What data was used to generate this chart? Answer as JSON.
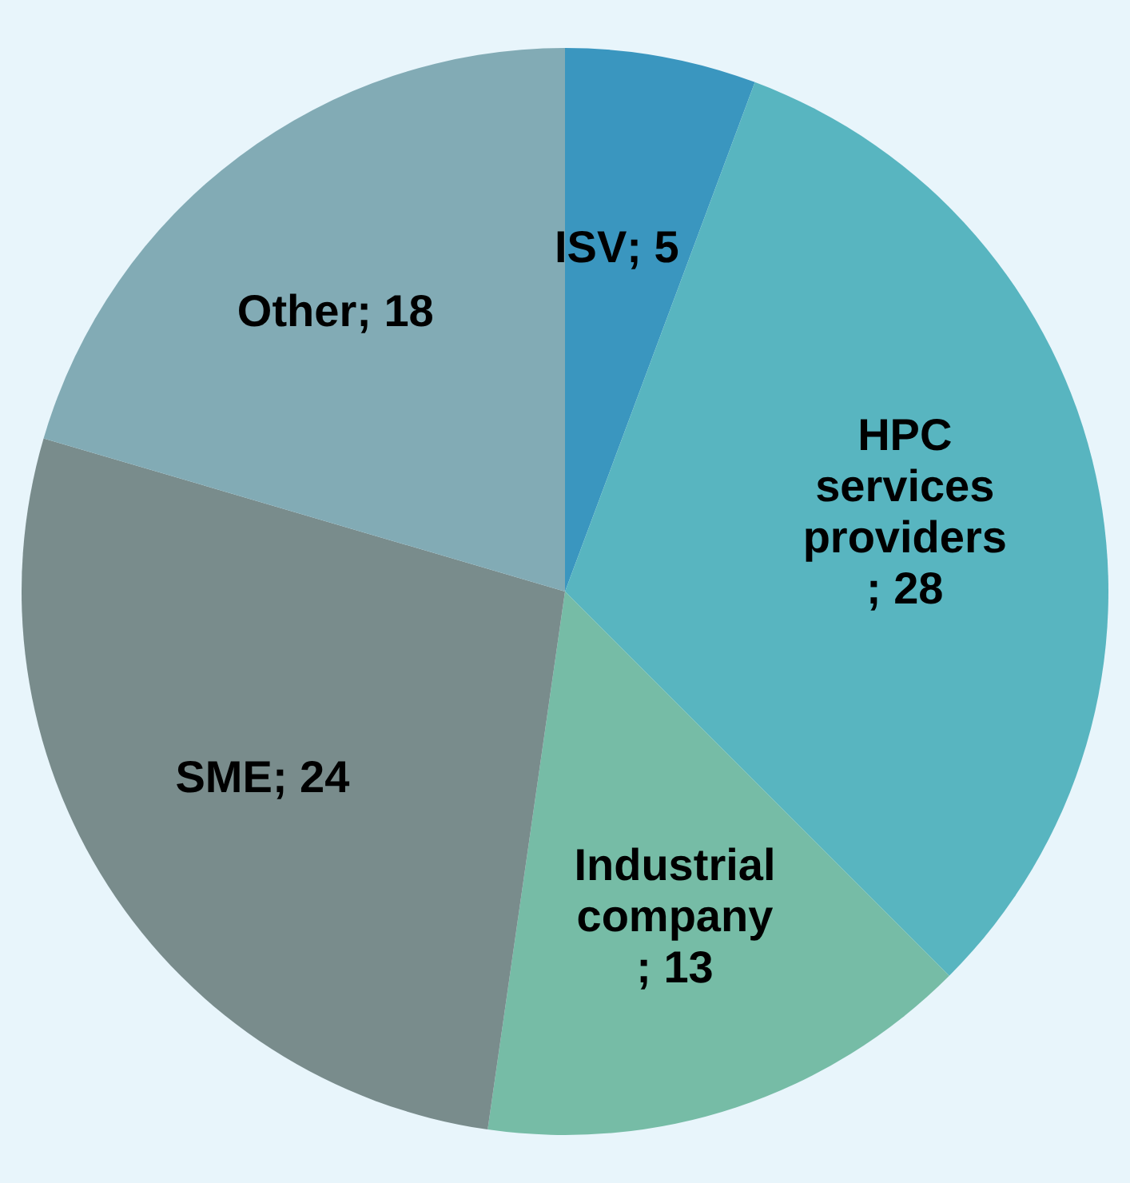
{
  "chart_data": {
    "type": "pie",
    "categories": [
      "ISV",
      "HPC services providers",
      "Industrial company",
      "SME",
      "Other"
    ],
    "values": [
      5,
      28,
      13,
      24,
      18
    ],
    "colors": [
      "#3a96bf",
      "#58b5c0",
      "#76bca6",
      "#798c8c",
      "#82abb5"
    ],
    "value_labels": [
      "; 5",
      "; 28",
      "; 13",
      "; 24",
      "; 18"
    ],
    "legend": false
  }
}
